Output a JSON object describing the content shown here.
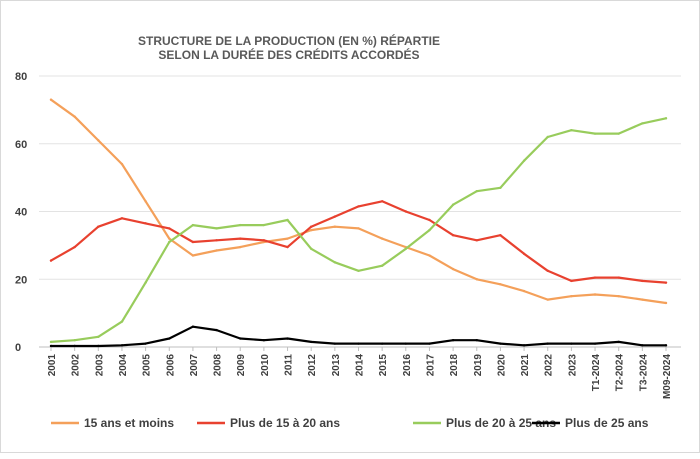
{
  "chart_data": {
    "type": "line",
    "title_lines": [
      "STRUCTURE DE LA PRODUCTION (EN %) RÉPARTIE",
      "SELON LA DURÉE DES CRÉDITS ACCORDÉS"
    ],
    "xlabel": "",
    "ylabel": "",
    "ylim": [
      0,
      80
    ],
    "yticks": [
      0,
      20,
      40,
      60,
      80
    ],
    "grid": true,
    "legend_position": "bottom",
    "categories": [
      "2001",
      "2002",
      "2003",
      "2004",
      "2005",
      "2006",
      "2007",
      "2008",
      "2009",
      "2010",
      "2011",
      "2012",
      "2013",
      "2014",
      "2015",
      "2016",
      "2017",
      "2018",
      "2019",
      "2020",
      "2021",
      "2022",
      "2023",
      "T1-2024",
      "T2-2024",
      "T3-2024",
      "M09-2024"
    ],
    "series": [
      {
        "name": "15 ans et moins",
        "color": "#f4a05a",
        "values": [
          73,
          68,
          61,
          54,
          43,
          32,
          27,
          28.5,
          29.5,
          31,
          32,
          34.5,
          35.5,
          35,
          32,
          29.5,
          27,
          23,
          20,
          18.5,
          16.5,
          14,
          15,
          15.5,
          15,
          14,
          13
        ]
      },
      {
        "name": "Plus de 15 à 20 ans",
        "color": "#e8412f",
        "values": [
          25.5,
          29.5,
          35.5,
          38,
          36.5,
          35,
          31,
          31.5,
          32,
          31.5,
          29.5,
          35.5,
          38.5,
          41.5,
          43,
          40,
          37.5,
          33,
          31.5,
          33,
          27.5,
          22.5,
          19.5,
          20.5,
          20.5,
          19.5,
          19
        ]
      },
      {
        "name": "Plus de 20 à 25 ans",
        "color": "#98cc5c",
        "values": [
          1.5,
          2,
          3,
          7.5,
          19,
          31,
          36,
          35,
          36,
          36,
          37.5,
          29,
          25,
          22.5,
          24,
          29,
          34.5,
          42,
          46,
          47,
          55,
          62,
          64,
          63,
          63,
          66,
          67.5
        ]
      },
      {
        "name": "Plus de 25 ans",
        "color": "#000000",
        "values": [
          0.3,
          0.3,
          0.3,
          0.5,
          1,
          2.5,
          6,
          5,
          2.5,
          2,
          2.5,
          1.5,
          1,
          1,
          1,
          1,
          1,
          2,
          2,
          1,
          0.5,
          1,
          1,
          1,
          1.5,
          0.5,
          0.5
        ]
      }
    ]
  }
}
